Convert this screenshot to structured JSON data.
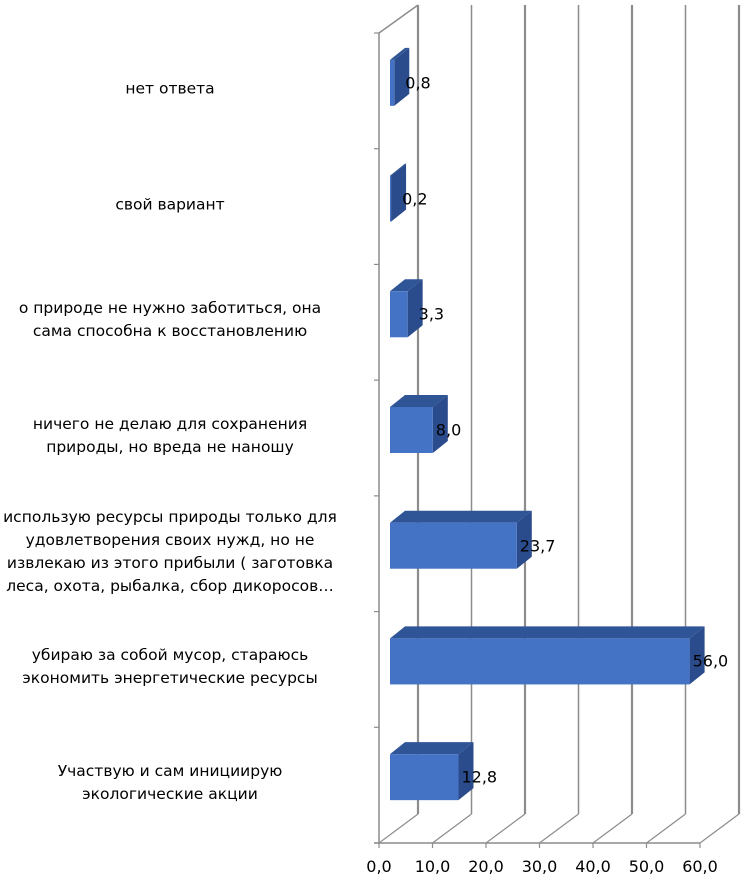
{
  "chart_data": {
    "type": "bar",
    "orientation": "horizontal",
    "style": "3d",
    "title": "",
    "xlabel": "",
    "ylabel": "",
    "xlim": [
      0,
      60
    ],
    "x_ticks": [
      "0,0",
      "10,0",
      "20,0",
      "30,0",
      "40,0",
      "50,0",
      "60,0"
    ],
    "grid": true,
    "categories": [
      "нет ответа",
      "свой вариант",
      "о природе не нужно заботиться, она сама способна к восстановлению",
      "ничего не делаю для сохранения природы, но вреда не наношу",
      "использую ресурсы природы только для удовлетворения своих нужд, но не извлекаю из этого прибыли ( заготовка леса, охота, рыбалка, сбор дикоросов…",
      "убираю за собой мусор, стараюсь экономить энергетические ресурсы",
      "Участвую и сам инициирую экологические акции"
    ],
    "category_lines": [
      [
        "нет ответа"
      ],
      [
        "свой вариант"
      ],
      [
        "о природе не нужно заботиться, она",
        "сама способна к восстановлению"
      ],
      [
        "ничего не делаю для сохранения",
        "природы, но вреда не наношу"
      ],
      [
        "использую ресурсы природы только для",
        "удовлетворения своих нужд, но не",
        "извлекаю из этого прибыли ( заготовка",
        "леса, охота, рыбалка, сбор дикоросов…"
      ],
      [
        "убираю за собой мусор, стараюсь",
        "экономить энергетические ресурсы"
      ],
      [
        "Участвую и сам инициирую",
        "экологические акции"
      ]
    ],
    "values": [
      0.8,
      0.2,
      3.3,
      8.0,
      23.7,
      56.0,
      12.8
    ],
    "data_labels": [
      "0,8",
      "0,2",
      "3,3",
      "8,0",
      "23,7",
      "56,0",
      "12,8"
    ],
    "colors": {
      "front": "#4472C4",
      "top": "#2F5597",
      "side": "#2B4C8C",
      "grid": "#8c8c8c"
    }
  }
}
